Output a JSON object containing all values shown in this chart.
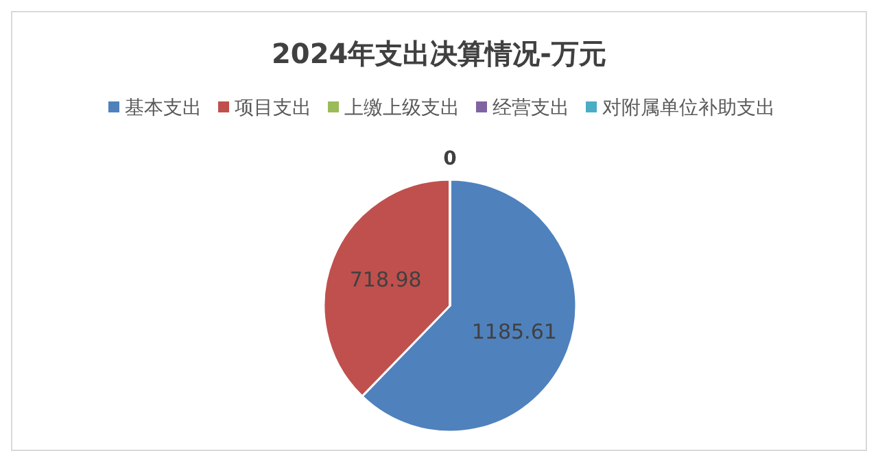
{
  "chart_data": {
    "type": "pie",
    "title": "2024年支出决算情况-万元",
    "categories": [
      "基本支出",
      "项目支出",
      "上缴上级支出",
      "经营支出",
      "对附属单位补助支出"
    ],
    "values": [
      1185.61,
      718.98,
      0,
      0,
      0
    ],
    "colors": [
      "#4f81bd",
      "#c0504d",
      "#9bbb59",
      "#8064a2",
      "#4bacc6"
    ],
    "value_labels": [
      "1185.61",
      "718.98",
      "0",
      null,
      null
    ],
    "legend": "top"
  }
}
